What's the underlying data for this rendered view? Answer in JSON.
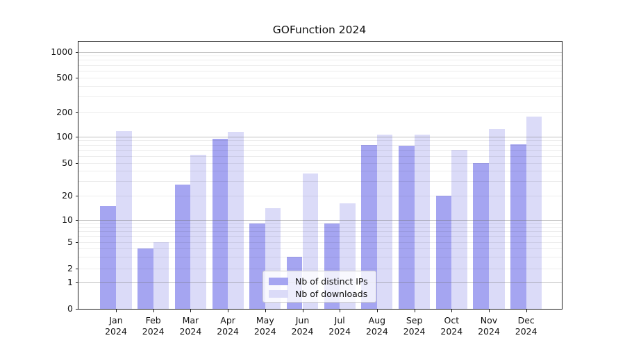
{
  "title": "GOFunction 2024",
  "chart_data": {
    "type": "bar",
    "title": "GOFunction 2024",
    "categories": [
      "Jan 2024",
      "Feb 2024",
      "Mar 2024",
      "Apr 2024",
      "May 2024",
      "Jun 2024",
      "Jul 2024",
      "Aug 2024",
      "Sep 2024",
      "Oct 2024",
      "Nov 2024",
      "Dec 2024"
    ],
    "series": [
      {
        "name": "Nb of distinct IPs",
        "color": "#a5a5f1",
        "values": [
          15,
          4,
          27,
          93,
          9,
          3,
          9,
          80,
          78,
          20,
          50,
          81
        ]
      },
      {
        "name": "Nb of downloads",
        "color": "#dbdbf8",
        "values": [
          115,
          5,
          62,
          113,
          14,
          37,
          16,
          105,
          105,
          70,
          124,
          175
        ]
      }
    ],
    "xlabel": "",
    "ylabel": "",
    "yscale": "log-like (linear segment 0-1, logarithmic above 1)",
    "y_tick_labels": [
      "0",
      "1",
      "2",
      "5",
      "10",
      "20",
      "50",
      "100",
      "200",
      "500",
      "1000"
    ],
    "ylim": [
      0,
      1300
    ],
    "grid": "horizontal major and minor gridlines",
    "legend_position": "lower center inside plot"
  },
  "axes": {
    "x_tick_months": [
      "Jan",
      "Feb",
      "Mar",
      "Apr",
      "May",
      "Jun",
      "Jul",
      "Aug",
      "Sep",
      "Oct",
      "Nov",
      "Dec"
    ],
    "x_tick_year": "2024"
  },
  "legend": {
    "items": [
      {
        "label": "Nb of distinct IPs",
        "color": "#a5a5f1"
      },
      {
        "label": "Nb of downloads",
        "color": "#dbdbf8"
      }
    ]
  },
  "colors": {
    "bar_distinct_ips": "#a5a5f1",
    "bar_downloads": "#dbdbf8",
    "spine": "#1a1a1a",
    "major_grid": "rgba(110,110,110,0.45)",
    "minor_grid": "rgba(0,0,0,0.07)",
    "legend_border": "#cccccc",
    "text": "#111111",
    "background": "#ffffff"
  }
}
